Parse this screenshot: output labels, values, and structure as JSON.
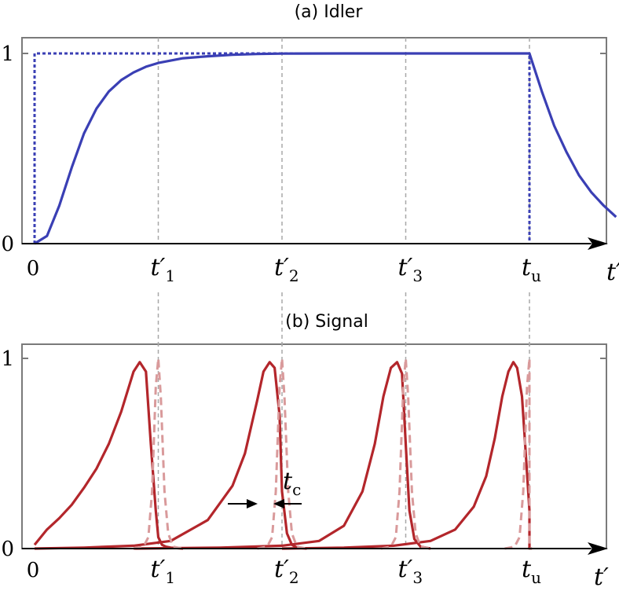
{
  "chart_data": [
    {
      "type": "line",
      "title": "(a) Idler",
      "xlabel": "t′",
      "ylim": [
        0,
        1
      ],
      "ytick_labels": [
        "0",
        "1"
      ],
      "x_markers": [
        {
          "label": "0",
          "x": 0
        },
        {
          "label": "t′",
          "sub": "1",
          "x": 1
        },
        {
          "label": "t′",
          "sub": "2",
          "x": 2
        },
        {
          "label": "t′",
          "sub": "3",
          "x": 3
        },
        {
          "label": "t",
          "sub": "u",
          "x": 4
        }
      ],
      "series": [
        {
          "style": "solid",
          "color": "#3a3fb4",
          "x": [
            0,
            0.1,
            0.2,
            0.3,
            0.4,
            0.5,
            0.6,
            0.7,
            0.8,
            0.9,
            1,
            1.2,
            1.4,
            1.6,
            1.8,
            2,
            2.5,
            3,
            3.5,
            4,
            4.1,
            4.2,
            4.3,
            4.4,
            4.5,
            4.6,
            4.7
          ],
          "y": [
            0,
            0.04,
            0.2,
            0.4,
            0.58,
            0.71,
            0.8,
            0.86,
            0.9,
            0.93,
            0.95,
            0.975,
            0.985,
            0.993,
            0.997,
            0.999,
            1,
            1,
            1,
            1,
            0.8,
            0.62,
            0.48,
            0.36,
            0.27,
            0.2,
            0.14
          ]
        },
        {
          "style": "dotted",
          "color": "#3a3fb4",
          "x": [
            0,
            0,
            4,
            4
          ],
          "y": [
            0,
            1,
            1,
            0
          ]
        }
      ]
    },
    {
      "type": "line",
      "title": "(b) Signal",
      "xlabel": "t′",
      "ylim": [
        0,
        1
      ],
      "ytick_labels": [
        "0",
        "1"
      ],
      "x_markers": [
        {
          "label": "0",
          "x": 0
        },
        {
          "label": "t′",
          "sub": "1",
          "x": 1
        },
        {
          "label": "t′",
          "sub": "2",
          "x": 2
        },
        {
          "label": "t′",
          "sub": "3",
          "x": 3
        },
        {
          "label": "t",
          "sub": "u",
          "x": 4
        }
      ],
      "annotation": {
        "label": "t",
        "sub": "c"
      },
      "series": [
        {
          "style": "solid",
          "color": "#b3262b",
          "x": [
            0,
            0.1,
            0.2,
            0.3,
            0.4,
            0.5,
            0.6,
            0.7,
            0.8,
            0.85,
            0.9,
            0.94,
            0.98,
            1,
            1.03,
            1.06,
            1.1,
            1.2
          ],
          "y": [
            0.02,
            0.1,
            0.16,
            0.23,
            0.32,
            0.42,
            0.55,
            0.72,
            0.93,
            0.98,
            0.93,
            0.55,
            0.2,
            0.06,
            0.02,
            0.01,
            0.005,
            0
          ]
        },
        {
          "style": "solid",
          "color": "#b3262b",
          "x": [
            0,
            0.4,
            0.8,
            1.1,
            1.4,
            1.6,
            1.7,
            1.8,
            1.85,
            1.9,
            1.94,
            1.98,
            2,
            2.04,
            2.08,
            2.12,
            2.2
          ],
          "y": [
            0,
            0.005,
            0.015,
            0.04,
            0.15,
            0.33,
            0.5,
            0.78,
            0.93,
            0.98,
            0.95,
            0.7,
            0.3,
            0.08,
            0.02,
            0.005,
            0
          ]
        },
        {
          "style": "solid",
          "color": "#b3262b",
          "x": [
            0.8,
            1.5,
            2,
            2.3,
            2.5,
            2.65,
            2.75,
            2.82,
            2.88,
            2.93,
            2.97,
            3,
            3.03,
            3.07,
            3.12,
            3.2
          ],
          "y": [
            0,
            0.005,
            0.015,
            0.04,
            0.12,
            0.3,
            0.55,
            0.8,
            0.95,
            0.98,
            0.92,
            0.55,
            0.2,
            0.05,
            0.01,
            0
          ]
        },
        {
          "style": "solid",
          "color": "#b3262b",
          "x": [
            2,
            2.5,
            2.9,
            3.2,
            3.4,
            3.55,
            3.65,
            3.72,
            3.78,
            3.83,
            3.87,
            3.9,
            3.94,
            3.97,
            4,
            4,
            4.02
          ],
          "y": [
            0,
            0.005,
            0.015,
            0.04,
            0.1,
            0.22,
            0.38,
            0.58,
            0.8,
            0.93,
            0.98,
            0.95,
            0.8,
            0.5,
            0.2,
            0,
            0
          ]
        },
        {
          "style": "dashed",
          "color": "#d99a9b",
          "x": [
            0.8,
            0.88,
            0.92,
            0.95,
            0.98,
            1,
            1.02,
            1.05,
            1.08,
            1.12,
            1.2
          ],
          "y": [
            0,
            0.01,
            0.06,
            0.3,
            0.85,
            1,
            0.8,
            0.3,
            0.08,
            0.01,
            0
          ]
        },
        {
          "style": "dashed",
          "color": "#d99a9b",
          "x": [
            1.8,
            1.88,
            1.92,
            1.95,
            1.98,
            2,
            2.02,
            2.05,
            2.08,
            2.12,
            2.2
          ],
          "y": [
            0,
            0.01,
            0.06,
            0.3,
            0.85,
            1,
            0.8,
            0.3,
            0.08,
            0.01,
            0
          ]
        },
        {
          "style": "dashed",
          "color": "#d99a9b",
          "x": [
            2.8,
            2.88,
            2.92,
            2.95,
            2.98,
            3,
            3.02,
            3.05,
            3.08,
            3.12,
            3.2
          ],
          "y": [
            0,
            0.01,
            0.06,
            0.3,
            0.85,
            1,
            0.8,
            0.3,
            0.08,
            0.01,
            0
          ]
        },
        {
          "style": "dashed",
          "color": "#d99a9b",
          "x": [
            3.8,
            3.88,
            3.92,
            3.95,
            3.98,
            4,
            4,
            4.02
          ],
          "y": [
            0,
            0.01,
            0.06,
            0.3,
            0.85,
            1,
            0,
            0
          ]
        }
      ]
    }
  ]
}
